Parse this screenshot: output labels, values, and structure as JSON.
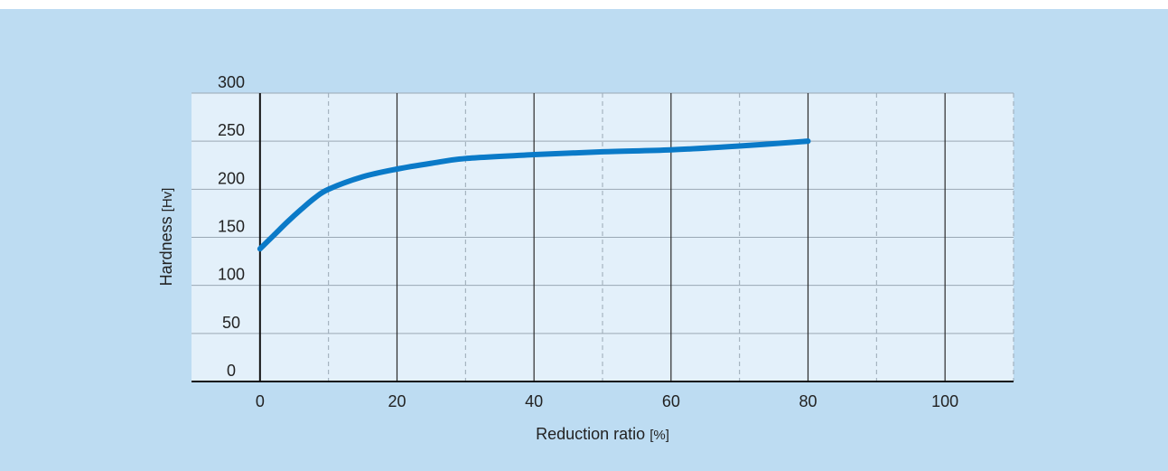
{
  "chart_data": {
    "type": "line",
    "xlabel": "Reduction ratio",
    "xunit": "[%]",
    "ylabel": "Hardness",
    "yunit": "[Hv]",
    "xlim": [
      -10,
      110
    ],
    "ylim": [
      0,
      300
    ],
    "x_ticks": [
      0,
      20,
      40,
      60,
      80,
      100
    ],
    "x_minor_ticks": [
      10,
      30,
      50,
      70,
      90,
      110
    ],
    "y_ticks": [
      0,
      50,
      100,
      150,
      200,
      250,
      300
    ],
    "grid": true,
    "series": [
      {
        "color": "#0a7ac8",
        "x": [
          0,
          2,
          4,
          6,
          8,
          10,
          15,
          20,
          25,
          30,
          40,
          50,
          60,
          70,
          80
        ],
        "y": [
          138,
          152,
          166,
          179,
          191,
          200,
          213,
          221,
          227,
          232,
          236,
          239,
          241,
          245,
          250
        ]
      }
    ]
  },
  "colors": {
    "background": "#bddcf2",
    "plot_area": "#e3f0fa",
    "line": "#0a7ac8"
  }
}
